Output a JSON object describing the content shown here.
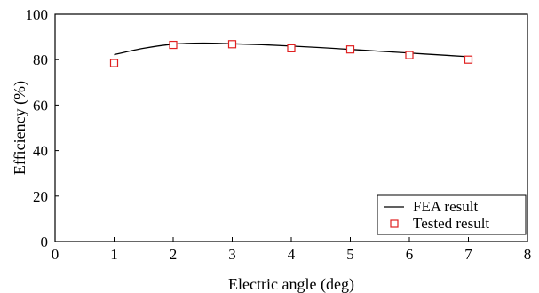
{
  "chart_data": {
    "type": "line",
    "xlabel": "Electric angle (deg)",
    "ylabel": "Efficiency (%)",
    "xlim": [
      0,
      8
    ],
    "ylim": [
      0,
      100
    ],
    "x_ticks": [
      0,
      1,
      2,
      3,
      4,
      5,
      6,
      7,
      8
    ],
    "y_ticks": [
      0,
      20,
      40,
      60,
      80,
      100
    ],
    "grid": false,
    "legend_position": "bottom-right",
    "series": [
      {
        "name": "FEA result",
        "kind": "line",
        "color": "#000000",
        "x": [
          1,
          1.5,
          2,
          2.5,
          3,
          3.5,
          4,
          4.5,
          5,
          5.5,
          6,
          6.5,
          7
        ],
        "y": [
          82.2,
          85.0,
          86.8,
          87.3,
          87.0,
          86.6,
          86.0,
          85.3,
          84.5,
          83.7,
          82.9,
          82.1,
          81.3
        ]
      },
      {
        "name": "Tested result",
        "kind": "scatter",
        "marker": "open-square",
        "color": "#e02020",
        "x": [
          1,
          2,
          3,
          4,
          5,
          6,
          7
        ],
        "y": [
          78.5,
          86.5,
          86.8,
          85.0,
          84.5,
          82.0,
          80.0
        ]
      }
    ]
  }
}
